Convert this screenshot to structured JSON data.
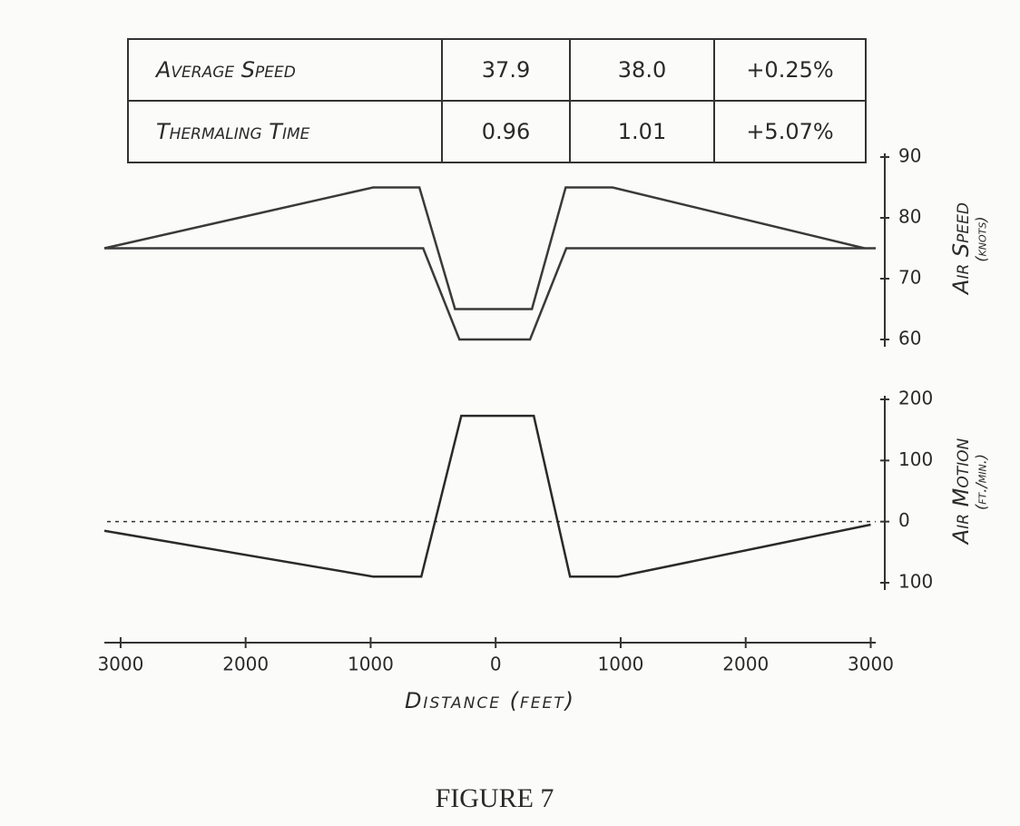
{
  "table": {
    "rows": [
      [
        "Average Speed",
        "37.9",
        "38.0",
        "+0.25%"
      ],
      [
        "Thermaling Time",
        "0.96",
        "1.01",
        "+5.07%"
      ]
    ]
  },
  "caption": "FIGURE 7",
  "chart_data": [
    {
      "type": "line",
      "ylabel": "Air Speed",
      "yunit": "(knots)",
      "xlim": [
        -3130,
        3040
      ],
      "ylim": [
        60,
        90
      ],
      "yticks": [
        60,
        70,
        80,
        90
      ],
      "series": [
        {
          "color": "#3a3a3a",
          "x": [
            -3130,
            -980,
            -610,
            -325,
            290,
            560,
            935,
            2950
          ],
          "values": [
            75,
            85,
            85,
            65,
            65,
            85,
            85,
            75
          ]
        },
        {
          "color": "#3a3a3a",
          "x": [
            -3130,
            -580,
            -290,
            275,
            565,
            3040
          ],
          "values": [
            75,
            75,
            60,
            60,
            75,
            75
          ]
        }
      ]
    },
    {
      "type": "line",
      "ylabel": "Air Motion",
      "yunit": "(ft./min.)",
      "xlabel": "Distance (feet)",
      "xlim": [
        -3130,
        3040
      ],
      "ylim": [
        -100,
        200
      ],
      "yticks": [
        {
          "value": -100,
          "label": "100"
        },
        0,
        100,
        200
      ],
      "xticks": [
        {
          "value": -3000,
          "label": "3000"
        },
        {
          "value": -2000,
          "label": "2000"
        },
        {
          "value": -1000,
          "label": "1000"
        },
        0,
        1000,
        2000,
        3000
      ],
      "reference_line": 0,
      "series": [
        {
          "color": "#2a2a2a",
          "x": [
            -3130,
            -980,
            -595,
            -275,
            305,
            595,
            980,
            3000
          ],
          "values": [
            -15,
            -90,
            -90,
            173,
            173,
            -90,
            -90,
            -5
          ]
        }
      ]
    }
  ]
}
